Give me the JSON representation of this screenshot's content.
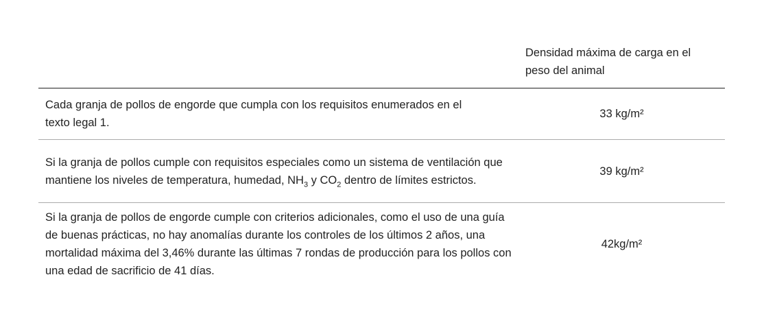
{
  "table": {
    "header": {
      "col1": "",
      "col2": "Densidad máxima de carga en el peso del animal"
    },
    "rows": [
      {
        "desc": "Cada granja de pollos de engorde que cumpla con los requisitos enumerados en el texto legal 1.",
        "value": "33 kg/m²"
      },
      {
        "desc_a": "Si la granja de pollos cumple con requisitos especiales como un sistema de ventilación que mantiene los niveles de temperatura, humedad, NH",
        "sub1": "3",
        "desc_b": " y CO",
        "sub2": "2",
        "desc_c": " dentro de límites estrictos.",
        "value": "39 kg/m²"
      },
      {
        "desc": "Si la granja de pollos de engorde cumple con criterios adicionales, como el uso de una guía de buenas prácticas, no hay anomalías durante los controles de los últimos 2 años, una mortalidad máxima del 3,46% durante las últimas 7 rondas de producción para los pollos con una edad de sacrificio de 41 días.",
        "value": "42kg/m²"
      }
    ]
  }
}
